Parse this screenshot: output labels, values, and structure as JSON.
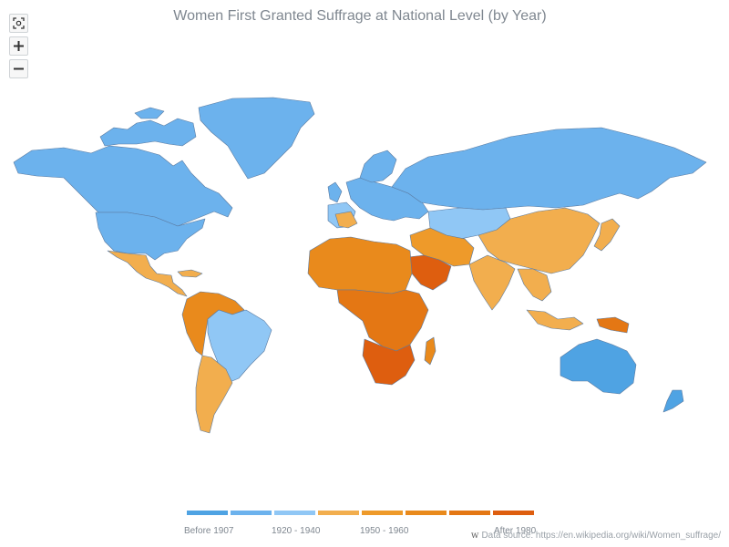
{
  "title": "Women First Granted Suffrage at National Level (by Year)",
  "zoom": {
    "reset_icon": "fit-to-screen-icon",
    "in_icon": "plus-icon",
    "out_icon": "minus-icon"
  },
  "legend": {
    "colors": [
      "#4fa3e3",
      "#6cb2ed",
      "#90c7f5",
      "#f2ae4e",
      "#ee9a2a",
      "#e98a1c",
      "#e47714",
      "#de5e0f"
    ],
    "labels": {
      "before_1907": "Before 1907",
      "range_1920_1940": "1920 - 1940",
      "range_1950_1960": "1950 - 1960",
      "after_1980": "After 1980"
    }
  },
  "credit": {
    "logo": "w",
    "text": "Data source: https://en.wikipedia.org/wiki/Women_suffrage/"
  },
  "map_colors": {
    "north_america": "#6cb2ed",
    "greenland": "#6cb2ed",
    "usa": "#6cb2ed",
    "mexico_central": "#f2ae4e",
    "south_america_west": "#e98a1c",
    "brazil": "#90c7f5",
    "argentina": "#f2ae4e",
    "europe": "#6cb2ed",
    "scandinavia": "#6cb2ed",
    "iberia": "#90c7f5",
    "russia": "#6cb2ed",
    "central_asia": "#90c7f5",
    "china": "#f2ae4e",
    "india": "#f2ae4e",
    "middle_east": "#ee9a2a",
    "arabia": "#de5e0f",
    "north_africa": "#e98a1c",
    "central_africa": "#e47714",
    "southern_africa": "#de5e0f",
    "southeast_asia": "#f2ae4e",
    "japan": "#f2ae4e",
    "australia": "#4fa3e3",
    "new_zealand": "#4fa3e3",
    "madagascar": "#e98a1c",
    "papua": "#e47714"
  }
}
